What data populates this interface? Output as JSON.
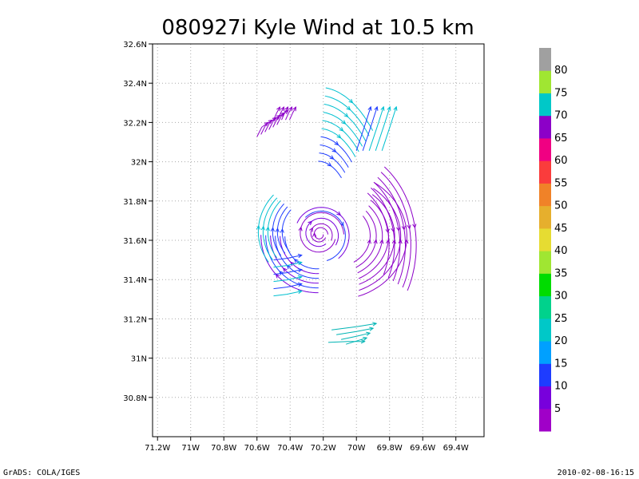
{
  "title": "080927i Kyle Wind at 10.5 km",
  "footer": {
    "left": "GrADS: COLA/IGES",
    "right": "2010-02-08-16:15"
  },
  "chart_data": {
    "type": "streamline",
    "title": "080927i Kyle Wind at 10.5 km",
    "x_ticks": [
      "71.2W",
      "71W",
      "70.8W",
      "70.6W",
      "70.4W",
      "70.2W",
      "70W",
      "69.8W",
      "69.6W",
      "69.4W"
    ],
    "y_ticks": [
      "30.8N",
      "31N",
      "31.2N",
      "31.4N",
      "31.6N",
      "31.8N",
      "32N",
      "32.2N",
      "32.4N",
      "32.6N"
    ],
    "xlim": [
      -71.23,
      -69.23
    ],
    "ylim": [
      30.6,
      32.6
    ],
    "grid": true,
    "storm_center": [
      -70.22,
      31.63
    ],
    "colorbar": {
      "labels": [
        "5",
        "10",
        "15",
        "20",
        "25",
        "30",
        "35",
        "40",
        "45",
        "50",
        "55",
        "60",
        "65",
        "70",
        "75",
        "80"
      ],
      "colors": [
        "#a000c8",
        "#7800dc",
        "#1e3cff",
        "#00a0ff",
        "#00c8c8",
        "#00d28c",
        "#00dc00",
        "#a0e632",
        "#e6dc32",
        "#e6af2d",
        "#f08228",
        "#fa3c3c",
        "#f00082",
        "#8c00c8",
        "#00c8c8",
        "#a0e632",
        "#a0a0a0"
      ]
    }
  }
}
